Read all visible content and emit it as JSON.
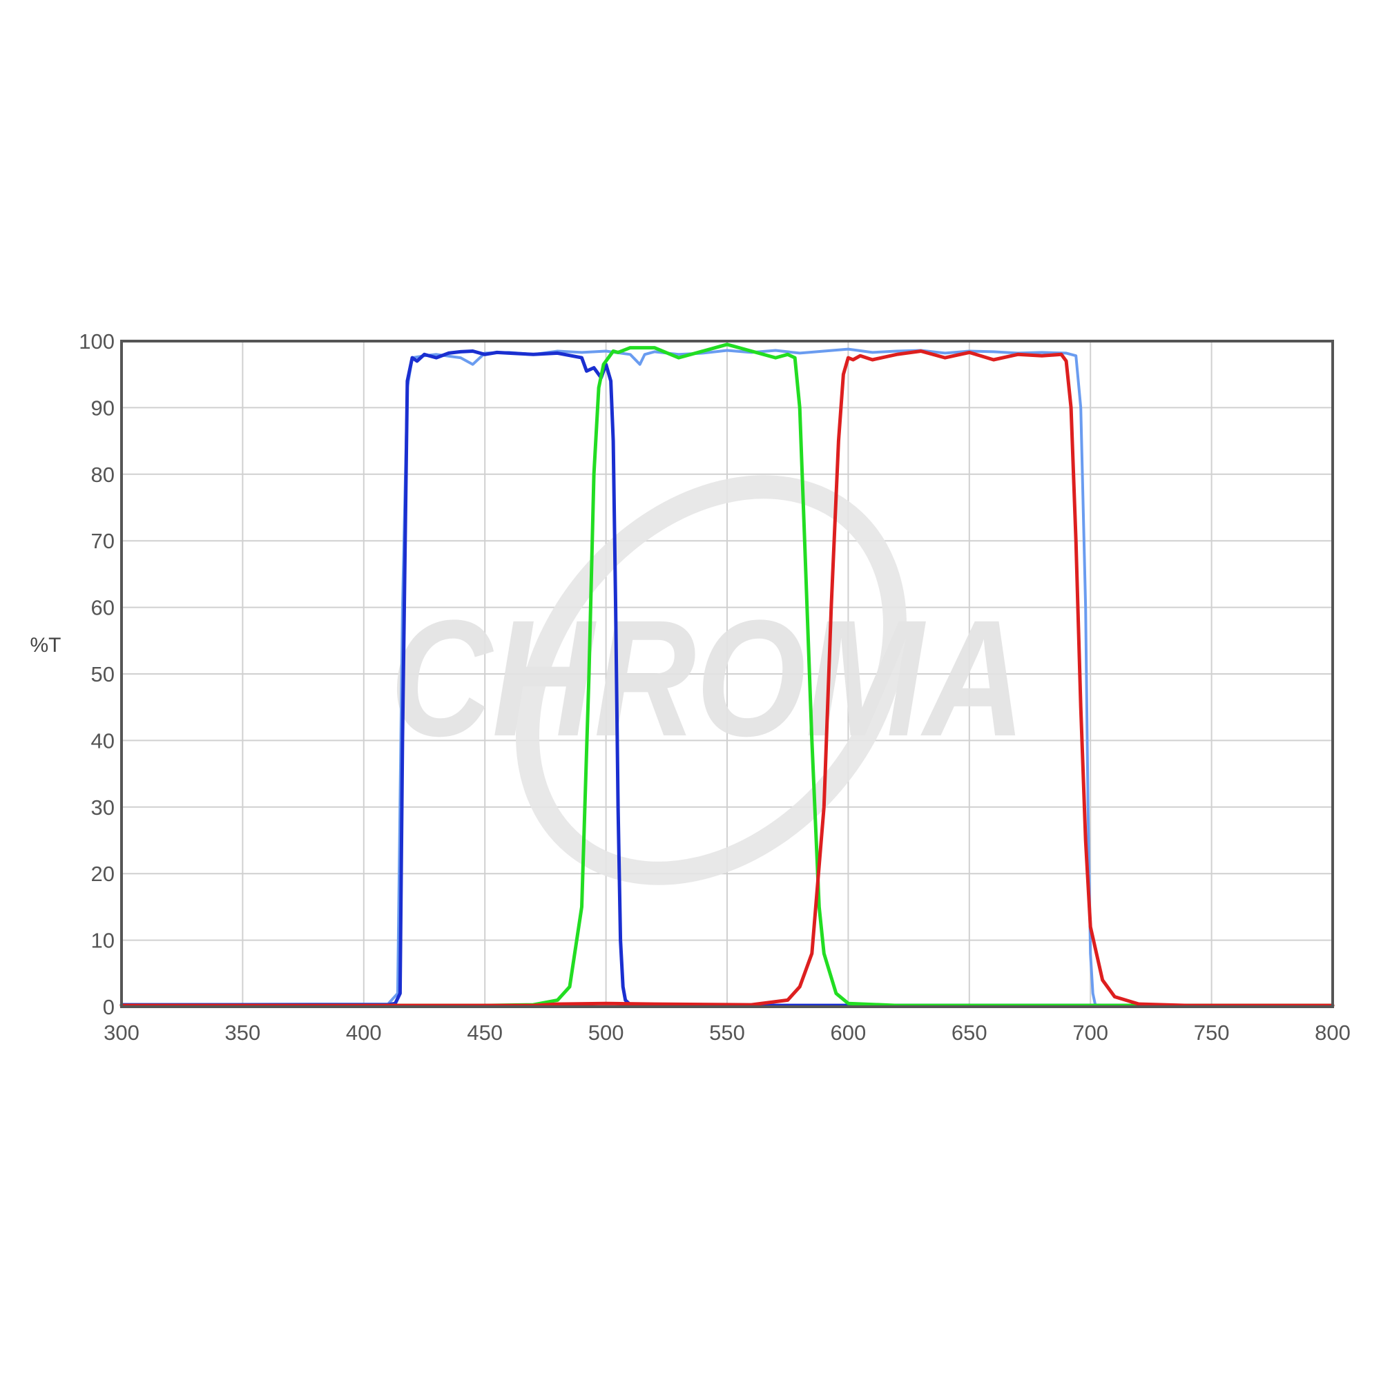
{
  "chart_data": {
    "type": "line",
    "title": "",
    "xlabel": "",
    "ylabel": "%T",
    "xlim": [
      300,
      800
    ],
    "ylim": [
      0,
      100
    ],
    "xticks": [
      300,
      350,
      400,
      450,
      500,
      550,
      600,
      650,
      700,
      750,
      800
    ],
    "yticks": [
      0,
      10,
      20,
      30,
      40,
      50,
      60,
      70,
      80,
      90,
      100
    ],
    "grid": true,
    "legend": "none",
    "watermark": "CHROMA",
    "series": [
      {
        "color": "#6a9cf0",
        "x": [
          300,
          380,
          410,
          414,
          416,
          418,
          420,
          425,
          430,
          440,
          445,
          450,
          460,
          470,
          480,
          490,
          500,
          510,
          514,
          516,
          520,
          530,
          540,
          550,
          560,
          570,
          580,
          590,
          600,
          610,
          620,
          630,
          640,
          650,
          660,
          670,
          680,
          690,
          694,
          696,
          698,
          699,
          700,
          701,
          702,
          705,
          800
        ],
        "y": [
          0.3,
          0.4,
          0.4,
          2,
          60,
          93,
          97.5,
          97.8,
          98,
          97.5,
          96.5,
          98.2,
          98.3,
          98,
          98.5,
          98.3,
          98.5,
          98,
          96.5,
          98,
          98.4,
          98,
          98.2,
          98.6,
          98.3,
          98.6,
          98.2,
          98.5,
          98.8,
          98.3,
          98.5,
          98.6,
          98.2,
          98.5,
          98.4,
          98.2,
          98.3,
          98.2,
          97.8,
          90,
          60,
          30,
          8,
          2,
          0.3,
          0.2,
          0.2
        ]
      },
      {
        "color": "#1a2fd0",
        "x": [
          300,
          410,
          413,
          415,
          416,
          418,
          420,
          422,
          425,
          430,
          435,
          440,
          445,
          450,
          455,
          460,
          470,
          480,
          490,
          492,
          495,
          498,
          500,
          502,
          503,
          504,
          505,
          506,
          507,
          508,
          510,
          520,
          800
        ],
        "y": [
          0.3,
          0.3,
          0.5,
          2,
          40,
          94,
          97.5,
          97,
          98,
          97.5,
          98.2,
          98.4,
          98.5,
          98,
          98.3,
          98.2,
          98,
          98.2,
          97.5,
          95.5,
          96,
          94.5,
          96.5,
          94,
          85,
          60,
          30,
          10,
          3,
          1,
          0.3,
          0.2,
          0.2
        ]
      },
      {
        "color": "#22dd22",
        "x": [
          300,
          450,
          470,
          480,
          485,
          490,
          493,
          495,
          497,
          499,
          501,
          503,
          505,
          510,
          520,
          530,
          540,
          550,
          555,
          560,
          570,
          575,
          578,
          580,
          582,
          585,
          588,
          590,
          595,
          600,
          620,
          800
        ],
        "y": [
          0.2,
          0.2,
          0.3,
          1,
          3,
          15,
          50,
          80,
          93,
          96.5,
          97.5,
          98.5,
          98.3,
          99,
          99,
          97.5,
          98.5,
          99.5,
          99,
          98.5,
          97.5,
          98,
          97.5,
          90,
          70,
          40,
          15,
          8,
          2,
          0.5,
          0.2,
          0.2
        ]
      },
      {
        "color": "#dd1f1f",
        "x": [
          300,
          470,
          480,
          500,
          520,
          560,
          575,
          580,
          585,
          590,
          593,
          596,
          598,
          600,
          602,
          605,
          610,
          620,
          630,
          640,
          650,
          660,
          670,
          680,
          688,
          690,
          692,
          694,
          696,
          698,
          700,
          705,
          710,
          720,
          740,
          800
        ],
        "y": [
          0.2,
          0.2,
          0.4,
          0.5,
          0.4,
          0.3,
          1,
          3,
          8,
          30,
          60,
          85,
          95,
          97.5,
          97.2,
          97.8,
          97.2,
          98,
          98.5,
          97.5,
          98.3,
          97.2,
          98,
          97.8,
          98,
          97,
          90,
          70,
          45,
          25,
          12,
          4,
          1.5,
          0.4,
          0.2,
          0.2
        ]
      }
    ]
  }
}
